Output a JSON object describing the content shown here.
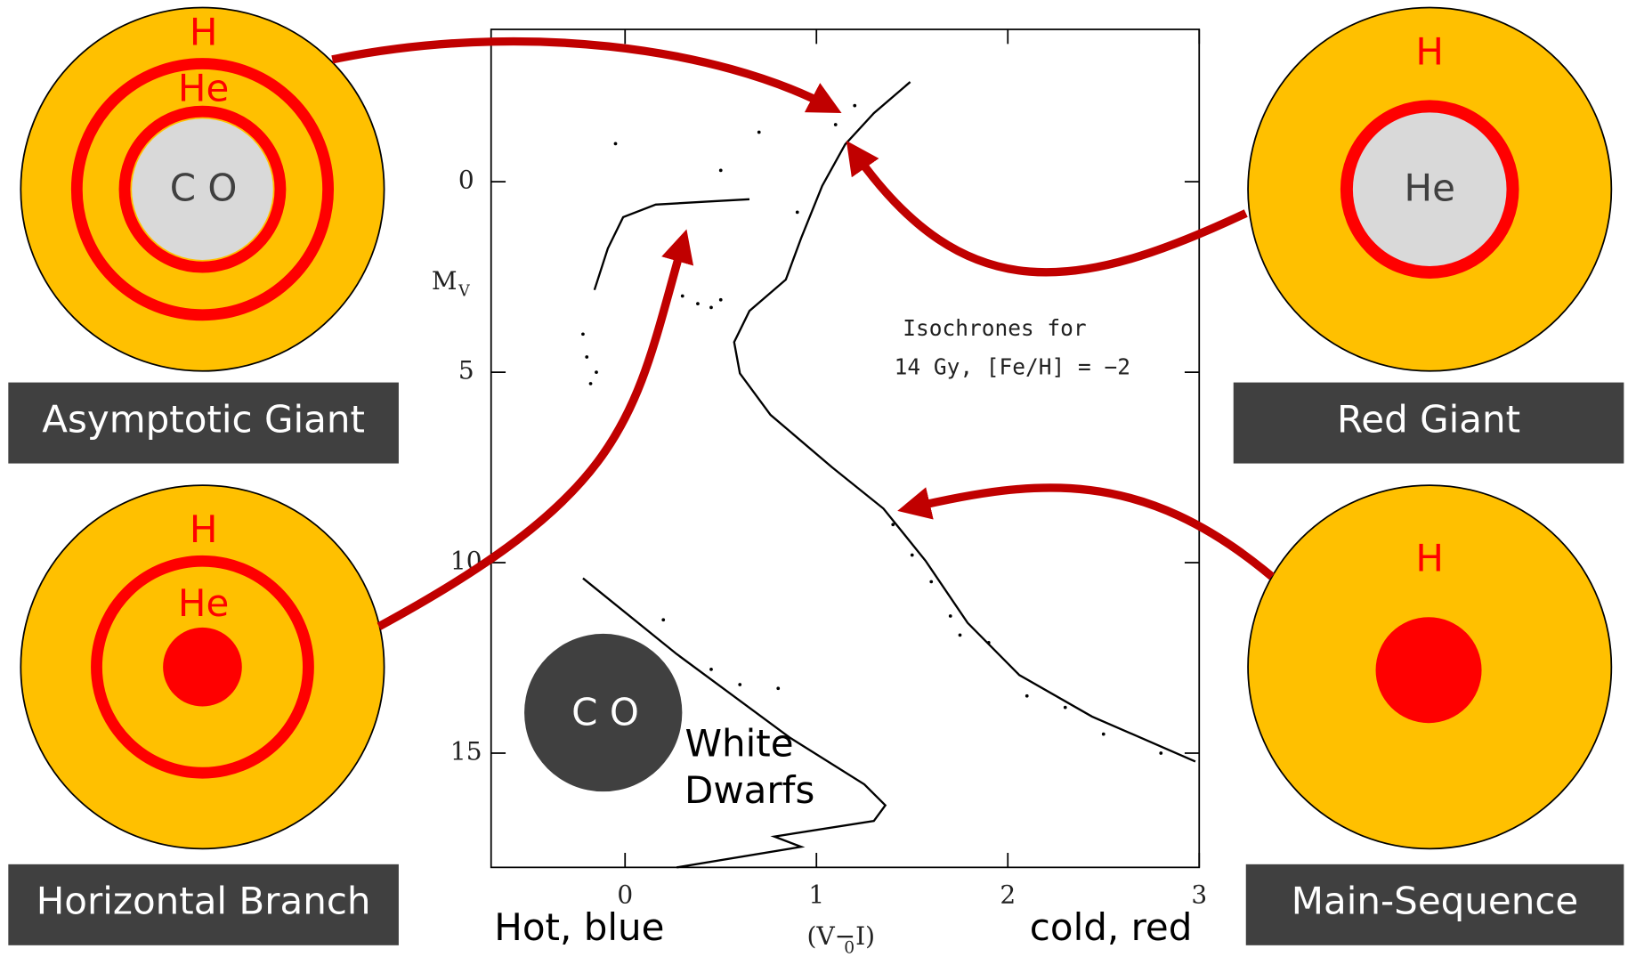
{
  "chart_data": {
    "type": "line",
    "xlabel": {
      "main": "(V−I)",
      "sub": "0"
    },
    "ylabel": {
      "main": "M",
      "sub": "V"
    },
    "annotation": [
      "Isochrones for",
      "14 Gy, [Fe/H] = −2"
    ],
    "xlim": [
      -0.7,
      3
    ],
    "ylim": [
      -4,
      18
    ],
    "y_inverted": true,
    "xticks": [
      0,
      1,
      2,
      3
    ],
    "yticks": [
      0,
      5,
      10,
      15
    ],
    "series": [
      {
        "kind": "line",
        "color": "#000000",
        "x": [
          1.49,
          1.3,
          1.15,
          1.03,
          0.92,
          0.84,
          0.65,
          0.57,
          0.6,
          0.76,
          1.08,
          1.35,
          1.57,
          1.79,
          2.06,
          2.44,
          2.98
        ],
        "values": [
          -2.62,
          -1.8,
          -0.98,
          0.11,
          1.48,
          2.57,
          3.39,
          4.21,
          5.03,
          6.12,
          7.49,
          8.58,
          9.95,
          11.58,
          12.95,
          14.04,
          15.22
        ]
      },
      {
        "kind": "line",
        "color": "#000000",
        "x": [
          -0.16,
          -0.09,
          -0.01,
          0.16,
          0.43,
          0.65
        ],
        "values": [
          2.84,
          1.75,
          0.93,
          0.6,
          0.52,
          0.46
        ]
      },
      {
        "kind": "line",
        "color": "#000000",
        "x": [
          -0.22,
          0.27,
          0.86,
          1.25,
          1.36,
          1.3,
          0.78,
          0.92,
          0.27
        ],
        "values": [
          10.41,
          12.4,
          14.59,
          15.82,
          16.37,
          16.78,
          17.19,
          17.46,
          18.0
        ]
      },
      {
        "kind": "scatter",
        "color": "#000000",
        "x": [
          0.3,
          0.38,
          0.45,
          0.5,
          -0.22,
          -0.2,
          -0.15,
          -0.18,
          0.2,
          0.45,
          0.6,
          0.8,
          1.6,
          1.7,
          1.9,
          2.1,
          2.3,
          2.5,
          2.8,
          1.1,
          1.2,
          0.7,
          0.9,
          1.4,
          1.5,
          1.75,
          -0.05,
          0.5
        ],
        "values": [
          3.0,
          3.2,
          3.3,
          3.1,
          4.0,
          4.6,
          5.0,
          5.3,
          11.5,
          12.8,
          13.2,
          13.3,
          10.5,
          11.4,
          12.1,
          13.5,
          13.8,
          14.5,
          15.0,
          -1.5,
          -2.0,
          -1.3,
          0.8,
          9.0,
          9.8,
          11.9,
          -1.0,
          -0.3
        ]
      }
    ]
  },
  "stars": [
    {
      "label": "Asymptotic Giant",
      "shells": [
        "H",
        "He",
        "C O"
      ]
    },
    {
      "label": "Red Giant",
      "shells": [
        "H",
        "He"
      ]
    },
    {
      "label": "Horizontal Branch",
      "shells": [
        "H",
        "He"
      ]
    },
    {
      "label": "Main-Sequence",
      "shells": [
        "H"
      ]
    }
  ],
  "white_dwarf": {
    "core": "C O",
    "label": [
      "White",
      "Dwarfs"
    ]
  },
  "axis_ends": {
    "left": "Hot, blue",
    "right": "cold, red"
  }
}
